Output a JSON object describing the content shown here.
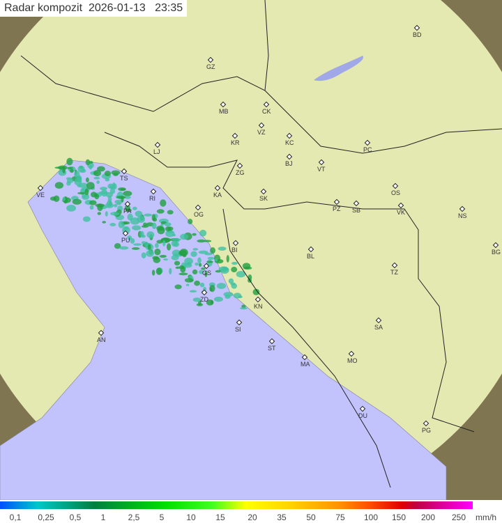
{
  "title": "Radar kompozit  2026-01-13   23:35",
  "legend": {
    "unit": "mm/h",
    "labels": [
      "0,1",
      "0,25",
      "0,5",
      "1",
      "2,5",
      "5",
      "10",
      "15",
      "20",
      "35",
      "50",
      "75",
      "100",
      "150",
      "200",
      "250"
    ]
  },
  "colors": {
    "sea": "#c0c0ff",
    "land": "#e6ebb0",
    "coverage_outside": "#8a8058",
    "rain_low": "#40c0a0",
    "rain_mid": "#20a040"
  },
  "cities": [
    "VE",
    "TS",
    "LJ",
    "GZ",
    "MB",
    "CK",
    "VZ",
    "KR",
    "KC",
    "ZG",
    "BJ",
    "VT",
    "PC",
    "BD",
    "KA",
    "SK",
    "PZ",
    "SB",
    "OS",
    "VK",
    "NS",
    "RI",
    "PA",
    "OG",
    "PU",
    "BI",
    "BL",
    "BG",
    "GS",
    "TZ",
    "ZD",
    "KN",
    "SA",
    "SI",
    "AN",
    "ST",
    "MA",
    "MO",
    "DU",
    "PG"
  ]
}
